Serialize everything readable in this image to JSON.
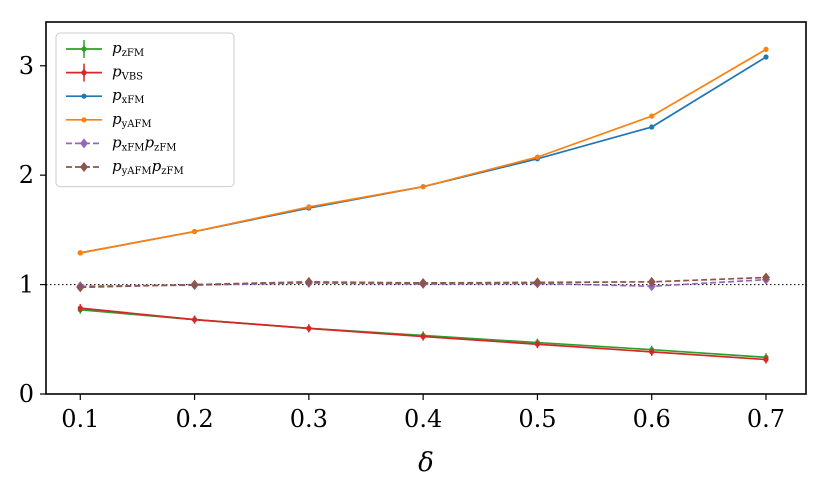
{
  "chart_data": {
    "type": "line",
    "xlabel": "δ",
    "ylabel": "",
    "xlim": [
      0.07,
      0.735
    ],
    "ylim": [
      0,
      3.4
    ],
    "x": [
      0.1,
      0.2,
      0.3,
      0.4,
      0.5,
      0.6,
      0.7
    ],
    "x_ticks": [
      "0.1",
      "0.2",
      "0.3",
      "0.4",
      "0.5",
      "0.6",
      "0.7"
    ],
    "y_ticks": [
      0,
      1,
      2,
      3
    ],
    "y_tick_labels": [
      "0",
      "1",
      "2",
      "3"
    ],
    "reference_line": {
      "y": 1,
      "style": "dotted",
      "color": "#000000"
    },
    "grid": false,
    "legend_position": "top-left",
    "series": [
      {
        "name": "p_{zFM}",
        "legend": {
          "main": "p",
          "sub": "zFM"
        },
        "color": "#2ca02c",
        "style": "solid",
        "marker": "errorbar",
        "values": [
          0.77,
          0.68,
          0.6,
          0.535,
          0.47,
          0.405,
          0.335
        ]
      },
      {
        "name": "p_{VBS}",
        "legend": {
          "main": "p",
          "sub": "VBS"
        },
        "color": "#d62728",
        "style": "solid",
        "marker": "errorbar",
        "values": [
          0.785,
          0.68,
          0.6,
          0.525,
          0.455,
          0.385,
          0.315
        ]
      },
      {
        "name": "p_{xFM}",
        "legend": {
          "main": "p",
          "sub": "xFM"
        },
        "color": "#1f77b4",
        "style": "solid",
        "marker": "dot",
        "values": [
          1.29,
          1.485,
          1.7,
          1.895,
          2.15,
          2.44,
          3.08
        ]
      },
      {
        "name": "p_{yAFM}",
        "legend": {
          "main": "p",
          "sub": "yAFM"
        },
        "color": "#ff7f0e",
        "style": "solid",
        "marker": "dot",
        "values": [
          1.29,
          1.485,
          1.71,
          1.895,
          2.165,
          2.54,
          3.15
        ]
      },
      {
        "name": "p_{xFM}p_{zFM}",
        "legend": {
          "main": "p",
          "sub": "xFM",
          "main2": "p",
          "sub2": "zFM"
        },
        "color": "#9467bd",
        "style": "dashed",
        "marker": "diamond",
        "values": [
          0.985,
          0.995,
          1.015,
          1.005,
          1.01,
          0.985,
          1.045
        ]
      },
      {
        "name": "p_{yAFM}p_{zFM}",
        "legend": {
          "main": "p",
          "sub": "yAFM",
          "main2": "p",
          "sub2": "zFM"
        },
        "color": "#8c564b",
        "style": "dashed",
        "marker": "diamond",
        "values": [
          0.975,
          1.0,
          1.025,
          1.015,
          1.02,
          1.025,
          1.065
        ]
      }
    ]
  }
}
